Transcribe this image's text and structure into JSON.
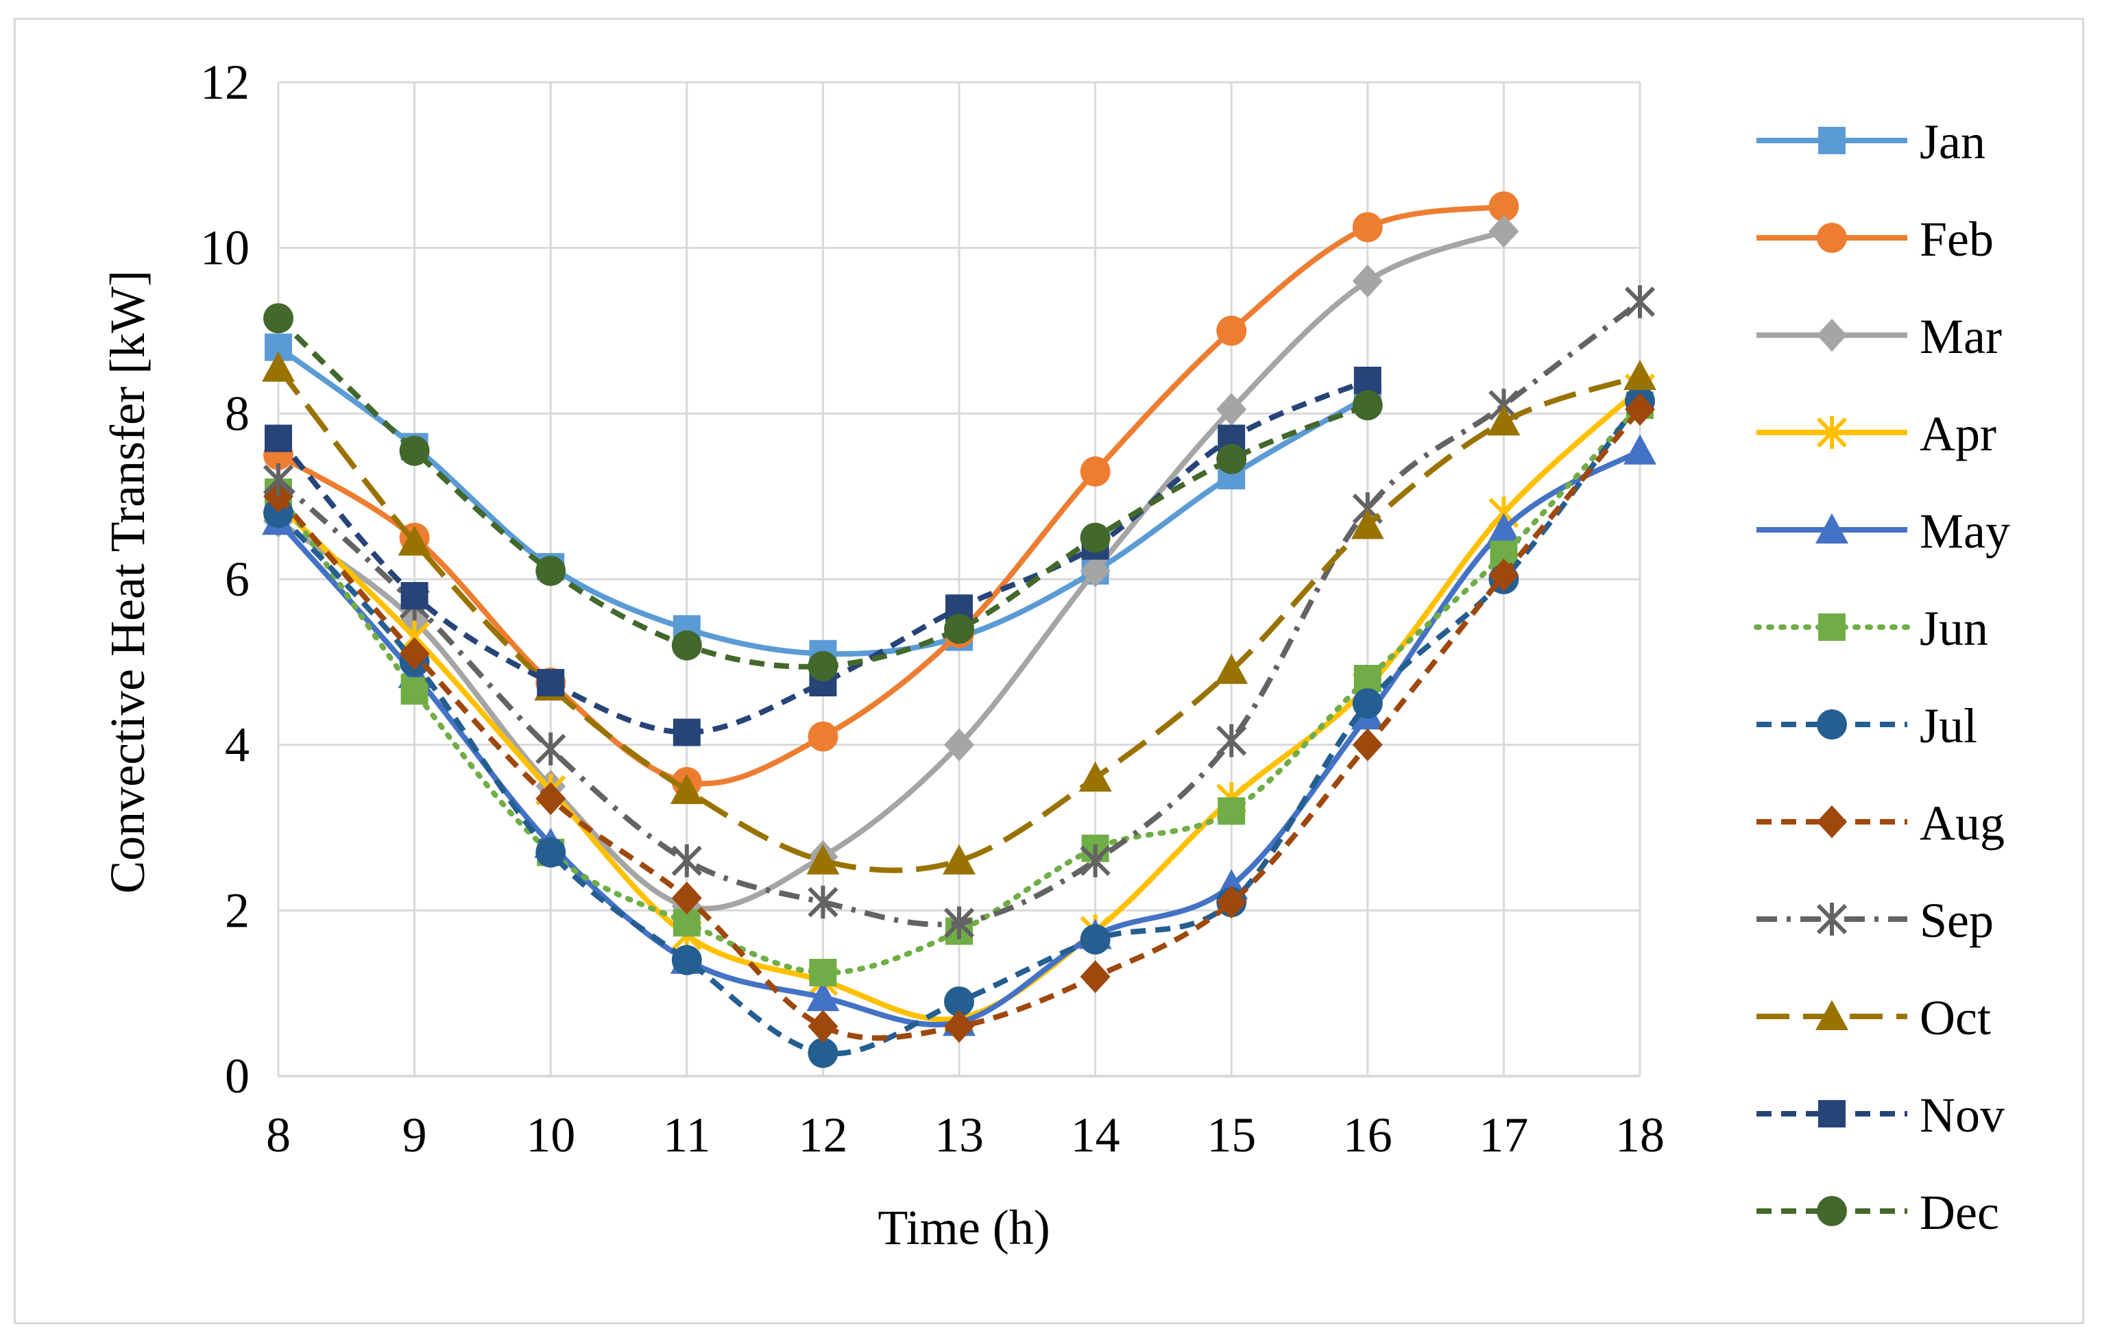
{
  "chart_data": {
    "type": "line",
    "title": "",
    "xlabel": "Time (h)",
    "ylabel": "Convective Heat Transfer [kW]",
    "xlim": [
      8,
      18
    ],
    "ylim": [
      0,
      12
    ],
    "xticks": [
      "8",
      "9",
      "10",
      "11",
      "12",
      "13",
      "14",
      "15",
      "16",
      "17",
      "18"
    ],
    "yticks": [
      "0",
      "2",
      "4",
      "6",
      "8",
      "10",
      "12"
    ],
    "grid": true,
    "legend_position": "right",
    "x": [
      8,
      9,
      10,
      11,
      12,
      13,
      14,
      15,
      16,
      17,
      18
    ],
    "series": [
      {
        "name": "Jan",
        "color": "#5b9bd5",
        "dash": "solid",
        "marker": "square",
        "values": [
          8.8,
          7.6,
          6.15,
          5.4,
          5.1,
          5.3,
          6.1,
          7.25,
          8.2,
          null,
          null
        ]
      },
      {
        "name": "Feb",
        "color": "#ed7d31",
        "dash": "solid",
        "marker": "circle",
        "values": [
          7.5,
          6.5,
          4.75,
          3.55,
          4.1,
          5.35,
          7.3,
          9.0,
          10.25,
          10.5,
          null
        ]
      },
      {
        "name": "Mar",
        "color": "#a5a5a5",
        "dash": "solid",
        "marker": "diamond",
        "values": [
          6.7,
          5.5,
          3.5,
          2.05,
          2.65,
          4.0,
          6.1,
          8.05,
          9.6,
          10.2,
          null
        ]
      },
      {
        "name": "Apr",
        "color": "#ffc000",
        "dash": "solid",
        "marker": "asterisk",
        "values": [
          6.9,
          5.3,
          3.45,
          1.7,
          1.15,
          0.7,
          1.75,
          3.35,
          4.7,
          6.8,
          8.3
        ]
      },
      {
        "name": "May",
        "color": "#4472c4",
        "dash": "solid",
        "marker": "triangle",
        "values": [
          6.7,
          4.85,
          2.8,
          1.4,
          0.95,
          0.65,
          1.7,
          2.3,
          4.35,
          6.6,
          7.55
        ]
      },
      {
        "name": "Jun",
        "color": "#70ad47",
        "dash": "dot",
        "marker": "square",
        "values": [
          7.05,
          4.65,
          2.7,
          1.85,
          1.25,
          1.75,
          2.75,
          3.2,
          4.8,
          6.3,
          8.1
        ]
      },
      {
        "name": "Jul",
        "color": "#255e91",
        "dash": "dash",
        "marker": "circle",
        "values": [
          6.8,
          5.0,
          2.7,
          1.4,
          0.28,
          0.9,
          1.65,
          2.1,
          4.5,
          6.0,
          8.15
        ]
      },
      {
        "name": "Aug",
        "color": "#9e480e",
        "dash": "dash",
        "marker": "diamond",
        "values": [
          7.0,
          5.1,
          3.35,
          2.15,
          0.6,
          0.6,
          1.2,
          2.1,
          4.0,
          6.05,
          8.05
        ]
      },
      {
        "name": "Sep",
        "color": "#636363",
        "dash": "dashdot",
        "marker": "asterisk",
        "values": [
          7.2,
          5.7,
          3.95,
          2.6,
          2.1,
          1.85,
          2.6,
          4.05,
          6.85,
          8.1,
          9.35
        ]
      },
      {
        "name": "Oct",
        "color": "#997300",
        "dash": "longdash",
        "marker": "triangle",
        "values": [
          8.55,
          6.45,
          4.7,
          3.45,
          2.6,
          2.6,
          3.6,
          4.9,
          6.65,
          7.9,
          8.45
        ]
      },
      {
        "name": "Nov",
        "color": "#264478",
        "dash": "dash",
        "marker": "square",
        "values": [
          7.7,
          5.8,
          4.75,
          4.15,
          4.75,
          5.65,
          6.4,
          7.7,
          8.4,
          null,
          null
        ]
      },
      {
        "name": "Dec",
        "color": "#43682b",
        "dash": "dash",
        "marker": "circle",
        "values": [
          9.15,
          7.55,
          6.1,
          5.2,
          4.95,
          5.4,
          6.5,
          7.45,
          8.1,
          null,
          null
        ]
      }
    ]
  }
}
